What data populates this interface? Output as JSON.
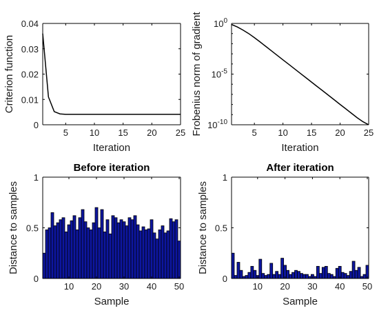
{
  "chart_data": [
    {
      "type": "line",
      "xlabel": "Iteration",
      "ylabel": "Criterion function",
      "xlim": [
        1,
        25
      ],
      "ylim": [
        0,
        0.04
      ],
      "xticks": [
        5,
        10,
        15,
        20,
        25
      ],
      "yticks": [
        0,
        0.01,
        0.02,
        0.03,
        0.04
      ],
      "ytick_labels": [
        "0",
        "0.01",
        "0.02",
        "0.03",
        "0.04"
      ],
      "x": [
        1,
        2,
        3,
        4,
        5,
        6,
        7,
        8,
        9,
        10,
        11,
        12,
        13,
        14,
        15,
        16,
        17,
        18,
        19,
        20,
        21,
        22,
        23,
        24,
        25
      ],
      "y": [
        0.036,
        0.011,
        0.0052,
        0.0043,
        0.0041,
        0.0041,
        0.0041,
        0.0041,
        0.0041,
        0.0041,
        0.0041,
        0.0041,
        0.0041,
        0.0041,
        0.0041,
        0.0041,
        0.0041,
        0.0041,
        0.0041,
        0.0041,
        0.0041,
        0.0041,
        0.0041,
        0.0041,
        0.0041
      ],
      "color": "#000000"
    },
    {
      "type": "line",
      "xlabel": "Iteration",
      "ylabel": "Frobenius norm of gradient",
      "xlim": [
        1,
        25
      ],
      "ylim_exponent": [
        -10,
        0
      ],
      "yscale": "log",
      "xticks": [
        5,
        10,
        15,
        20,
        25
      ],
      "yticks_exponent": [
        0,
        -5,
        -10
      ],
      "x": [
        1,
        2,
        3,
        4,
        5,
        6,
        7,
        8,
        9,
        10,
        11,
        12,
        13,
        14,
        15,
        16,
        17,
        18,
        19,
        20,
        21,
        22,
        23,
        24,
        25
      ],
      "y_exponent": [
        -0.1,
        -0.35,
        -0.65,
        -1.0,
        -1.4,
        -1.83,
        -2.27,
        -2.71,
        -3.15,
        -3.59,
        -4.03,
        -4.47,
        -4.91,
        -5.35,
        -5.79,
        -6.23,
        -6.67,
        -7.11,
        -7.55,
        -7.99,
        -8.43,
        -8.87,
        -9.31,
        -9.7,
        -10.0
      ],
      "color": "#000000"
    },
    {
      "type": "bar",
      "title": "Before iteration",
      "xlabel": "Sample",
      "ylabel": "Distance to samples",
      "xlim": [
        0.5,
        50.5
      ],
      "ylim": [
        0,
        1
      ],
      "xticks": [
        10,
        20,
        30,
        40,
        50
      ],
      "yticks": [
        0,
        0.5,
        1
      ],
      "ytick_labels": [
        "0",
        "0.5",
        "1"
      ],
      "values": [
        0.25,
        0.48,
        0.5,
        0.65,
        0.52,
        0.55,
        0.58,
        0.6,
        0.46,
        0.53,
        0.57,
        0.62,
        0.48,
        0.6,
        0.68,
        0.56,
        0.5,
        0.48,
        0.55,
        0.7,
        0.5,
        0.68,
        0.46,
        0.58,
        0.44,
        0.62,
        0.6,
        0.55,
        0.58,
        0.56,
        0.52,
        0.6,
        0.58,
        0.62,
        0.53,
        0.47,
        0.51,
        0.48,
        0.49,
        0.58,
        0.45,
        0.39,
        0.48,
        0.52,
        0.45,
        0.47,
        0.59,
        0.56,
        0.58,
        0.37
      ],
      "color": "#0d16a0",
      "edge_color": "#000000"
    },
    {
      "type": "bar",
      "title": "After iteration",
      "xlabel": "Sample",
      "ylabel": "Distance to samples",
      "xlim": [
        0.5,
        50.5
      ],
      "ylim": [
        0,
        1
      ],
      "xticks": [
        10,
        20,
        30,
        40,
        50
      ],
      "yticks": [
        0,
        0.5,
        1
      ],
      "ytick_labels": [
        "0",
        "0.5",
        "1"
      ],
      "values": [
        0.25,
        0.03,
        0.16,
        0.08,
        0.02,
        0.03,
        0.06,
        0.12,
        0.08,
        0.03,
        0.19,
        0.05,
        0.03,
        0.04,
        0.15,
        0.04,
        0.07,
        0.04,
        0.2,
        0.13,
        0.08,
        0.04,
        0.06,
        0.08,
        0.07,
        0.05,
        0.04,
        0.04,
        0.02,
        0.04,
        0.02,
        0.12,
        0.05,
        0.11,
        0.12,
        0.05,
        0.04,
        0.02,
        0.1,
        0.12,
        0.06,
        0.05,
        0.03,
        0.07,
        0.17,
        0.08,
        0.11,
        0.02,
        0.04,
        0.13
      ],
      "color": "#0d16a0",
      "edge_color": "#000000"
    }
  ]
}
